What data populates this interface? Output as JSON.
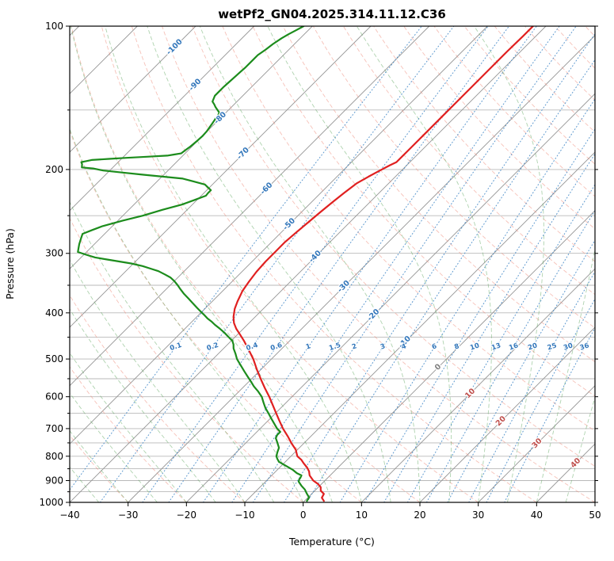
{
  "title": "wetPf2_GN04.2025.314.11.12.C36",
  "axes": {
    "x": {
      "label": "Temperature (°C)",
      "tick_values": [
        -40,
        -30,
        -20,
        -10,
        0,
        10,
        20,
        30,
        40,
        50
      ],
      "tick_labels": [
        "−40",
        "−30",
        "−20",
        "−10",
        "0",
        "10",
        "20",
        "30",
        "40",
        "50"
      ]
    },
    "y": {
      "label": "Pressure (hPa)",
      "tick_values": [
        100,
        200,
        300,
        400,
        500,
        600,
        700,
        800,
        900,
        1000
      ],
      "tick_labels": [
        "100",
        "200",
        "300",
        "400",
        "500",
        "600",
        "700",
        "800",
        "900",
        "1000"
      ],
      "minor_tick_values": [
        150,
        250,
        350,
        450,
        550,
        650,
        750,
        850,
        950
      ]
    }
  },
  "chart_data": {
    "type": "line",
    "subtype": "skew-t-log-p",
    "title": "wetPf2_GN04.2025.314.11.12.C36",
    "xlabel": "Temperature (°C)",
    "ylabel": "Pressure (hPa)",
    "t_range": [
      -40,
      50
    ],
    "p_range": [
      100,
      1000
    ],
    "skew_deg": 45,
    "grid_pressures": [
      100,
      150,
      200,
      250,
      300,
      350,
      400,
      450,
      500,
      550,
      600,
      650,
      700,
      750,
      800,
      850,
      900,
      950,
      1000
    ],
    "isotherms": {
      "min": -120,
      "max": 50,
      "step": 10,
      "color": "#949494",
      "label_color_negative": "#3377bb",
      "label_color_zero": "#808080",
      "label_color_positive": "#c0504d",
      "labels": [
        {
          "t": -100,
          "p": 110
        },
        {
          "t": -90,
          "p": 132
        },
        {
          "t": -80,
          "p": 155
        },
        {
          "t": -70,
          "p": 184
        },
        {
          "t": -60,
          "p": 218
        },
        {
          "t": -50,
          "p": 259
        },
        {
          "t": -40,
          "p": 303
        },
        {
          "t": -30,
          "p": 350
        },
        {
          "t": -20,
          "p": 402
        },
        {
          "t": -10,
          "p": 458
        },
        {
          "t": 0,
          "p": 517
        },
        {
          "t": 10,
          "p": 587
        },
        {
          "t": 20,
          "p": 671
        },
        {
          "t": 30,
          "p": 747
        },
        {
          "t": 40,
          "p": 822
        }
      ]
    },
    "dry_adiabats": {
      "min": -40,
      "max": 190,
      "step": 10,
      "color": "#ef8e7d"
    },
    "moist_adiabats": {
      "min": -40,
      "max": 50,
      "step": 5,
      "color": "#5fa75f"
    },
    "mixing_ratio": {
      "values": [
        0.1,
        0.2,
        0.4,
        0.6,
        1,
        1.5,
        2,
        3,
        4,
        6,
        8,
        10,
        13,
        16,
        20,
        25,
        30,
        36
      ],
      "label_pressure": 470,
      "color": "#3d85c6",
      "label_color": "#3377bb"
    },
    "series": [
      {
        "name": "temperature",
        "color": "#e02020",
        "points": [
          [
            993,
            3.3
          ],
          [
            978,
            2.4
          ],
          [
            960,
            2.1
          ],
          [
            945,
            1.0
          ],
          [
            929,
            0.4
          ],
          [
            915,
            -0.6
          ],
          [
            900,
            -2.0
          ],
          [
            878,
            -3.5
          ],
          [
            861,
            -4.3
          ],
          [
            845,
            -5.3
          ],
          [
            828,
            -6.6
          ],
          [
            814,
            -7.6
          ],
          [
            800,
            -8.9
          ],
          [
            775,
            -10.3
          ],
          [
            753,
            -12.0
          ],
          [
            726,
            -14.0
          ],
          [
            700,
            -16.1
          ],
          [
            672,
            -18.2
          ],
          [
            646,
            -20.2
          ],
          [
            622,
            -22.1
          ],
          [
            600,
            -23.9
          ],
          [
            576,
            -26.1
          ],
          [
            554,
            -28.1
          ],
          [
            527,
            -30.6
          ],
          [
            500,
            -33.1
          ],
          [
            478,
            -35.5
          ],
          [
            458,
            -37.8
          ],
          [
            444,
            -39.6
          ],
          [
            432,
            -41.2
          ],
          [
            420,
            -42.6
          ],
          [
            408,
            -43.7
          ],
          [
            392,
            -44.9
          ],
          [
            378,
            -45.7
          ],
          [
            360,
            -46.6
          ],
          [
            344,
            -47.1
          ],
          [
            328,
            -47.5
          ],
          [
            312,
            -47.7
          ],
          [
            298,
            -47.7
          ],
          [
            284,
            -47.7
          ],
          [
            270,
            -47.4
          ],
          [
            258,
            -47.1
          ],
          [
            246,
            -46.8
          ],
          [
            234,
            -46.4
          ],
          [
            224,
            -46.0
          ],
          [
            214,
            -45.5
          ],
          [
            207,
            -44.6
          ],
          [
            201,
            -43.7
          ],
          [
            196,
            -42.9
          ],
          [
            193,
            -42.3
          ],
          [
            179,
            -42.3
          ],
          [
            166,
            -42.3
          ],
          [
            154,
            -42.3
          ],
          [
            143,
            -42.3
          ],
          [
            132,
            -42.3
          ],
          [
            122,
            -42.3
          ],
          [
            113,
            -42.3
          ],
          [
            105,
            -42.2
          ],
          [
            100,
            -42.2
          ]
        ]
      },
      {
        "name": "dewpoint",
        "color": "#1c8c1c",
        "points": [
          [
            993,
            0.4
          ],
          [
            977,
            0.2
          ],
          [
            958,
            -0.9
          ],
          [
            940,
            -1.9
          ],
          [
            922,
            -3.2
          ],
          [
            905,
            -4.3
          ],
          [
            895,
            -4.6
          ],
          [
            887,
            -4.7
          ],
          [
            878,
            -4.9
          ],
          [
            868,
            -6.1
          ],
          [
            855,
            -7.3
          ],
          [
            838,
            -9.2
          ],
          [
            822,
            -11.1
          ],
          [
            810,
            -11.9
          ],
          [
            800,
            -12.5
          ],
          [
            785,
            -13.0
          ],
          [
            768,
            -13.5
          ],
          [
            750,
            -14.6
          ],
          [
            733,
            -15.7
          ],
          [
            722,
            -16.0
          ],
          [
            711,
            -16.0
          ],
          [
            700,
            -17.1
          ],
          [
            684,
            -18.4
          ],
          [
            667,
            -19.8
          ],
          [
            650,
            -21.2
          ],
          [
            634,
            -22.6
          ],
          [
            617,
            -23.9
          ],
          [
            600,
            -25.2
          ],
          [
            585,
            -26.7
          ],
          [
            571,
            -28.3
          ],
          [
            557,
            -29.7
          ],
          [
            543,
            -31.2
          ],
          [
            531,
            -32.5
          ],
          [
            519,
            -33.8
          ],
          [
            509,
            -34.9
          ],
          [
            500,
            -35.9
          ],
          [
            487,
            -37.1
          ],
          [
            475,
            -38.3
          ],
          [
            466,
            -39.0
          ],
          [
            458,
            -39.8
          ],
          [
            449,
            -41.2
          ],
          [
            440,
            -42.6
          ],
          [
            432,
            -44.0
          ],
          [
            424,
            -45.5
          ],
          [
            417,
            -46.7
          ],
          [
            411,
            -47.9
          ],
          [
            405,
            -48.9
          ],
          [
            400,
            -49.8
          ],
          [
            391,
            -51.4
          ],
          [
            382,
            -53.0
          ],
          [
            373,
            -54.6
          ],
          [
            364,
            -56.3
          ],
          [
            357,
            -57.5
          ],
          [
            350,
            -58.7
          ],
          [
            343,
            -60.0
          ],
          [
            337,
            -61.3
          ],
          [
            332,
            -62.8
          ],
          [
            327,
            -64.4
          ],
          [
            323,
            -66.2
          ],
          [
            319,
            -68.0
          ],
          [
            315,
            -70.4
          ],
          [
            312,
            -72.8
          ],
          [
            309,
            -75.2
          ],
          [
            306,
            -77.6
          ],
          [
            302,
            -79.6
          ],
          [
            298,
            -81.5
          ],
          [
            292,
            -82.1
          ],
          [
            287,
            -82.6
          ],
          [
            280,
            -83.2
          ],
          [
            273,
            -83.8
          ],
          [
            268,
            -82.8
          ],
          [
            263,
            -81.7
          ],
          [
            256,
            -79.2
          ],
          [
            250,
            -76.6
          ],
          [
            243,
            -74.2
          ],
          [
            237,
            -71.8
          ],
          [
            232,
            -70.5
          ],
          [
            227,
            -69.2
          ],
          [
            224,
            -69.3
          ],
          [
            221,
            -69.3
          ],
          [
            218,
            -70.3
          ],
          [
            215,
            -71.3
          ],
          [
            212,
            -73.7
          ],
          [
            209,
            -76.1
          ],
          [
            207,
            -79.9
          ],
          [
            205,
            -83.7
          ],
          [
            203,
            -87.4
          ],
          [
            201,
            -91.1
          ],
          [
            199,
            -93.2
          ],
          [
            198,
            -95.3
          ],
          [
            195,
            -95.8
          ],
          [
            193,
            -96.3
          ],
          [
            192,
            -95.6
          ],
          [
            191,
            -94.9
          ],
          [
            190,
            -92.1
          ],
          [
            189,
            -89.3
          ],
          [
            188,
            -86.0
          ],
          [
            187,
            -82.7
          ],
          [
            186,
            -81.7
          ],
          [
            185,
            -80.7
          ],
          [
            182,
            -80.5
          ],
          [
            179,
            -80.3
          ],
          [
            174,
            -80.1
          ],
          [
            170,
            -80.0
          ],
          [
            166,
            -80.1
          ],
          [
            163,
            -80.3
          ],
          [
            160,
            -80.5
          ],
          [
            157,
            -80.7
          ],
          [
            154,
            -80.9
          ],
          [
            152,
            -81.1
          ],
          [
            150,
            -81.9
          ],
          [
            148,
            -82.7
          ],
          [
            146,
            -83.4
          ],
          [
            144,
            -84.2
          ],
          [
            142,
            -84.5
          ],
          [
            140,
            -84.8
          ],
          [
            137,
            -84.8
          ],
          [
            134,
            -84.8
          ],
          [
            131,
            -84.7
          ],
          [
            128,
            -84.6
          ],
          [
            125,
            -84.5
          ],
          [
            122,
            -84.4
          ],
          [
            118,
            -84.4
          ],
          [
            115,
            -84.4
          ],
          [
            112,
            -84.0
          ],
          [
            109,
            -83.7
          ],
          [
            106,
            -83.2
          ],
          [
            104,
            -82.7
          ],
          [
            102,
            -82.1
          ],
          [
            100,
            -81.5
          ]
        ]
      }
    ]
  }
}
